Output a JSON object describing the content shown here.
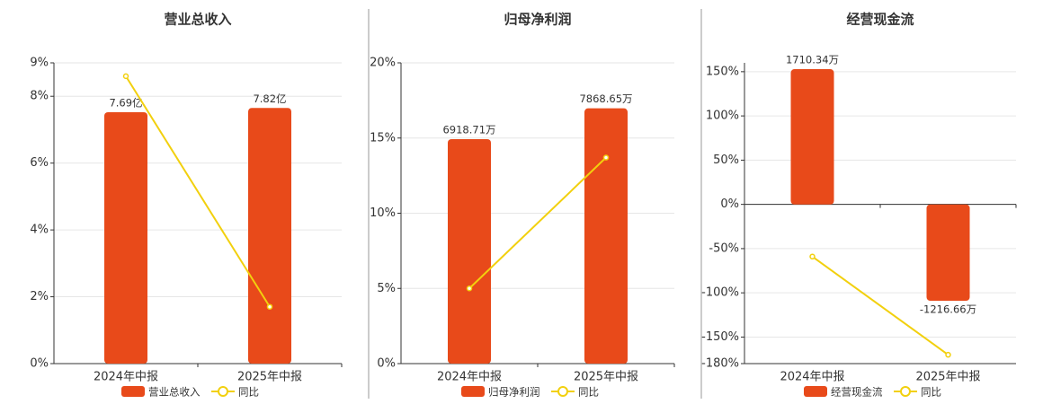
{
  "chart_data": [
    {
      "type": "bar",
      "title": "营业总收入",
      "categories": [
        "2024年中报",
        "2025年中报"
      ],
      "series": [
        {
          "name": "营业总收入",
          "type": "bar",
          "color": "#e84a1a",
          "axis": "y2",
          "values": [
            7.69,
            7.82
          ],
          "value_labels": [
            "7.69亿",
            "7.82亿"
          ]
        },
        {
          "name": "同比",
          "type": "line",
          "color": "#f2d00e",
          "values": [
            8.6,
            1.7
          ]
        }
      ],
      "ylim": [
        0,
        9
      ],
      "yticks": [
        {
          "value": 0,
          "label": "0%"
        },
        {
          "value": 2,
          "label": "2%"
        },
        {
          "value": 4,
          "label": "4%"
        },
        {
          "value": 6,
          "label": "6%"
        },
        {
          "value": 8,
          "label": "8%"
        },
        {
          "value": 9,
          "label": "9%"
        }
      ],
      "y2lim": [
        0,
        9.2
      ],
      "grid": true
    },
    {
      "type": "bar",
      "title": "归母净利润",
      "categories": [
        "2024年中报",
        "2025年中报"
      ],
      "series": [
        {
          "name": "归母净利润",
          "type": "bar",
          "color": "#e84a1a",
          "axis": "y2",
          "values": [
            6918.71,
            7868.65
          ],
          "value_labels": [
            "6918.71万",
            "7868.65万"
          ]
        },
        {
          "name": "同比",
          "type": "line",
          "color": "#f2d00e",
          "values": [
            5,
            13.7
          ]
        }
      ],
      "ylim": [
        0,
        20
      ],
      "yticks": [
        {
          "value": 0,
          "label": "0%"
        },
        {
          "value": 5,
          "label": "5%"
        },
        {
          "value": 10,
          "label": "10%"
        },
        {
          "value": 15,
          "label": "15%"
        },
        {
          "value": 20,
          "label": "20%"
        }
      ],
      "y2lim": [
        0,
        9270
      ],
      "grid": true
    },
    {
      "type": "bar",
      "title": "经营现金流",
      "categories": [
        "2024年中报",
        "2025年中报"
      ],
      "series": [
        {
          "name": "经营现金流",
          "type": "bar",
          "color": "#e84a1a",
          "axis": "y2",
          "values": [
            1710.34,
            -1216.66
          ],
          "value_labels": [
            "1710.34万",
            "-1216.66万"
          ]
        },
        {
          "name": "同比",
          "type": "line",
          "color": "#f2d00e",
          "values": [
            -59,
            -170
          ]
        }
      ],
      "ylim": [
        -180,
        160
      ],
      "yticks": [
        {
          "value": 150,
          "label": "150%"
        },
        {
          "value": 100,
          "label": "100%"
        },
        {
          "value": 50,
          "label": "50%"
        },
        {
          "value": 0,
          "label": "0%"
        },
        {
          "value": -50,
          "label": "-50%"
        },
        {
          "value": -100,
          "label": "-100%"
        },
        {
          "value": -150,
          "label": "-150%"
        },
        {
          "value": -180,
          "label": "-180%"
        }
      ],
      "y2lim": [
        -2010,
        1790
      ],
      "grid": true
    }
  ]
}
